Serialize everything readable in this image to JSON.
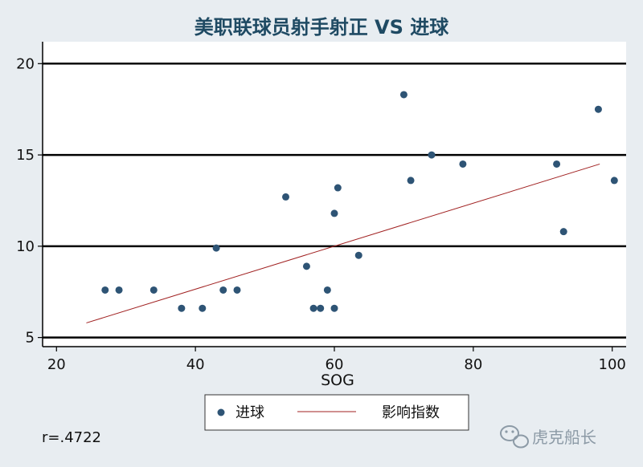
{
  "chart_data": {
    "type": "scatter",
    "title": "美职联球员射手射正 VS 进球",
    "xlabel": "SOG",
    "ylabel": "",
    "xlim": [
      18,
      102
    ],
    "ylim": [
      4.5,
      21.2
    ],
    "xticks": [
      20,
      40,
      60,
      80,
      100
    ],
    "yticks": [
      5,
      10,
      15,
      20
    ],
    "grid": "horizontal lines at y ticks",
    "colors": {
      "points": "#2e5475",
      "fit_line": "#a02020",
      "background": "#e8edf1",
      "plot_area": "#ffffff"
    },
    "series": [
      {
        "name": "进球",
        "kind": "scatter",
        "points": [
          [
            27,
            7.6
          ],
          [
            29,
            7.6
          ],
          [
            34,
            7.6
          ],
          [
            38,
            6.6
          ],
          [
            41,
            6.6
          ],
          [
            43,
            9.9
          ],
          [
            44,
            7.6
          ],
          [
            46,
            7.6
          ],
          [
            53,
            12.7
          ],
          [
            56,
            8.9
          ],
          [
            57,
            6.6
          ],
          [
            58,
            6.6
          ],
          [
            59,
            7.6
          ],
          [
            60,
            6.6
          ],
          [
            60,
            11.8
          ],
          [
            60.5,
            13.2
          ],
          [
            63.5,
            9.5
          ],
          [
            70,
            18.3
          ],
          [
            71,
            13.6
          ],
          [
            74,
            15.0
          ],
          [
            78.5,
            14.5
          ],
          [
            92,
            14.5
          ],
          [
            93,
            10.8
          ],
          [
            98,
            17.5
          ],
          [
            100.3,
            13.6
          ]
        ]
      },
      {
        "name": "影响指数",
        "kind": "line",
        "points": [
          [
            24.3,
            5.8
          ],
          [
            98.2,
            14.5
          ]
        ]
      }
    ],
    "legend_position": "bottom-center",
    "annotation": "r=.4722"
  },
  "watermark": "虎克船长",
  "watermark_icon": "wechat-icon"
}
